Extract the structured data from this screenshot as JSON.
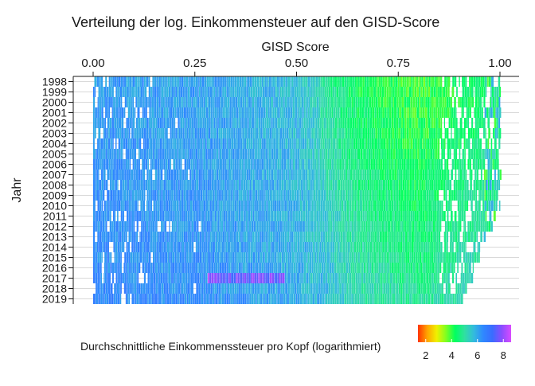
{
  "chart_data": {
    "type": "heatmap",
    "title": "Verteilung der log. Einkommensteuer auf den GISD-Score",
    "xlabel": "GISD Score",
    "ylabel": "Jahr",
    "x_axis_position": "top",
    "xlim": [
      0,
      1
    ],
    "x_ticks": [
      0,
      0.25,
      0.5,
      0.75,
      1
    ],
    "x_tick_labels": [
      "0.00",
      "0.25",
      "0.50",
      "0.75",
      "1.00"
    ],
    "categories": [
      "1998",
      "1999",
      "2000",
      "2001",
      "2002",
      "2003",
      "2004",
      "2005",
      "2006",
      "2007",
      "2008",
      "2009",
      "2010",
      "2011",
      "2012",
      "2013",
      "2014",
      "2015",
      "2016",
      "2017",
      "2018",
      "2019"
    ],
    "grid": true,
    "legend": {
      "title": "Durchschnittliche Einkommenssteuer pro Kopf (logarithmiert)",
      "position": "bottom",
      "range": [
        1.4,
        8.6
      ],
      "ticks": [
        2,
        4,
        6,
        8
      ],
      "tick_labels": [
        "2",
        "4",
        "6",
        "8"
      ],
      "colors": [
        "#ff3300",
        "#ffa500",
        "#f0f000",
        "#80ff20",
        "#00ff60",
        "#30e0a0",
        "#33bbdd",
        "#2f88ff",
        "#3a6cff",
        "#8a4dff",
        "#d94cff"
      ]
    },
    "pattern_note_value_by_x": {
      "x": [
        0.0,
        0.25,
        0.5,
        0.65,
        0.8,
        1.0
      ],
      "approx_log_income_tax": [
        6.3,
        6.2,
        5.8,
        4.7,
        4.3,
        5.0
      ]
    }
  }
}
